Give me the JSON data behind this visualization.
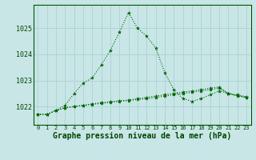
{
  "background_color": "#c8e6e6",
  "grid_color": "#b0d4d4",
  "line_color": "#006400",
  "x_labels": [
    "0",
    "1",
    "2",
    "3",
    "4",
    "5",
    "6",
    "7",
    "8",
    "9",
    "10",
    "11",
    "12",
    "13",
    "14",
    "15",
    "16",
    "17",
    "18",
    "19",
    "20",
    "21",
    "22",
    "23"
  ],
  "xlabel": "Graphe pression niveau de la mer (hPa)",
  "xlabel_fontsize": 7,
  "yticks": [
    1022,
    1023,
    1024,
    1025
  ],
  "ylim": [
    1021.3,
    1025.9
  ],
  "xlim": [
    -0.5,
    23.5
  ],
  "series1": [
    1021.7,
    1021.7,
    1021.85,
    1022.05,
    1022.5,
    1022.9,
    1023.1,
    1023.6,
    1024.15,
    1024.85,
    1025.6,
    1025.0,
    1024.7,
    1024.25,
    1023.3,
    1022.65,
    1022.3,
    1022.2,
    1022.3,
    1022.45,
    1022.6,
    1022.5,
    1022.4,
    1022.35
  ],
  "series2": [
    1021.7,
    1021.7,
    1021.85,
    1021.95,
    1022.0,
    1022.05,
    1022.1,
    1022.15,
    1022.18,
    1022.22,
    1022.25,
    1022.3,
    1022.35,
    1022.4,
    1022.45,
    1022.5,
    1022.55,
    1022.6,
    1022.65,
    1022.7,
    1022.75,
    1022.5,
    1022.45,
    1022.38
  ],
  "series3": [
    1021.7,
    1021.7,
    1021.85,
    1021.95,
    1022.0,
    1022.05,
    1022.08,
    1022.12,
    1022.16,
    1022.2,
    1022.23,
    1022.27,
    1022.3,
    1022.35,
    1022.4,
    1022.45,
    1022.5,
    1022.55,
    1022.6,
    1022.65,
    1022.7,
    1022.5,
    1022.42,
    1022.35
  ]
}
